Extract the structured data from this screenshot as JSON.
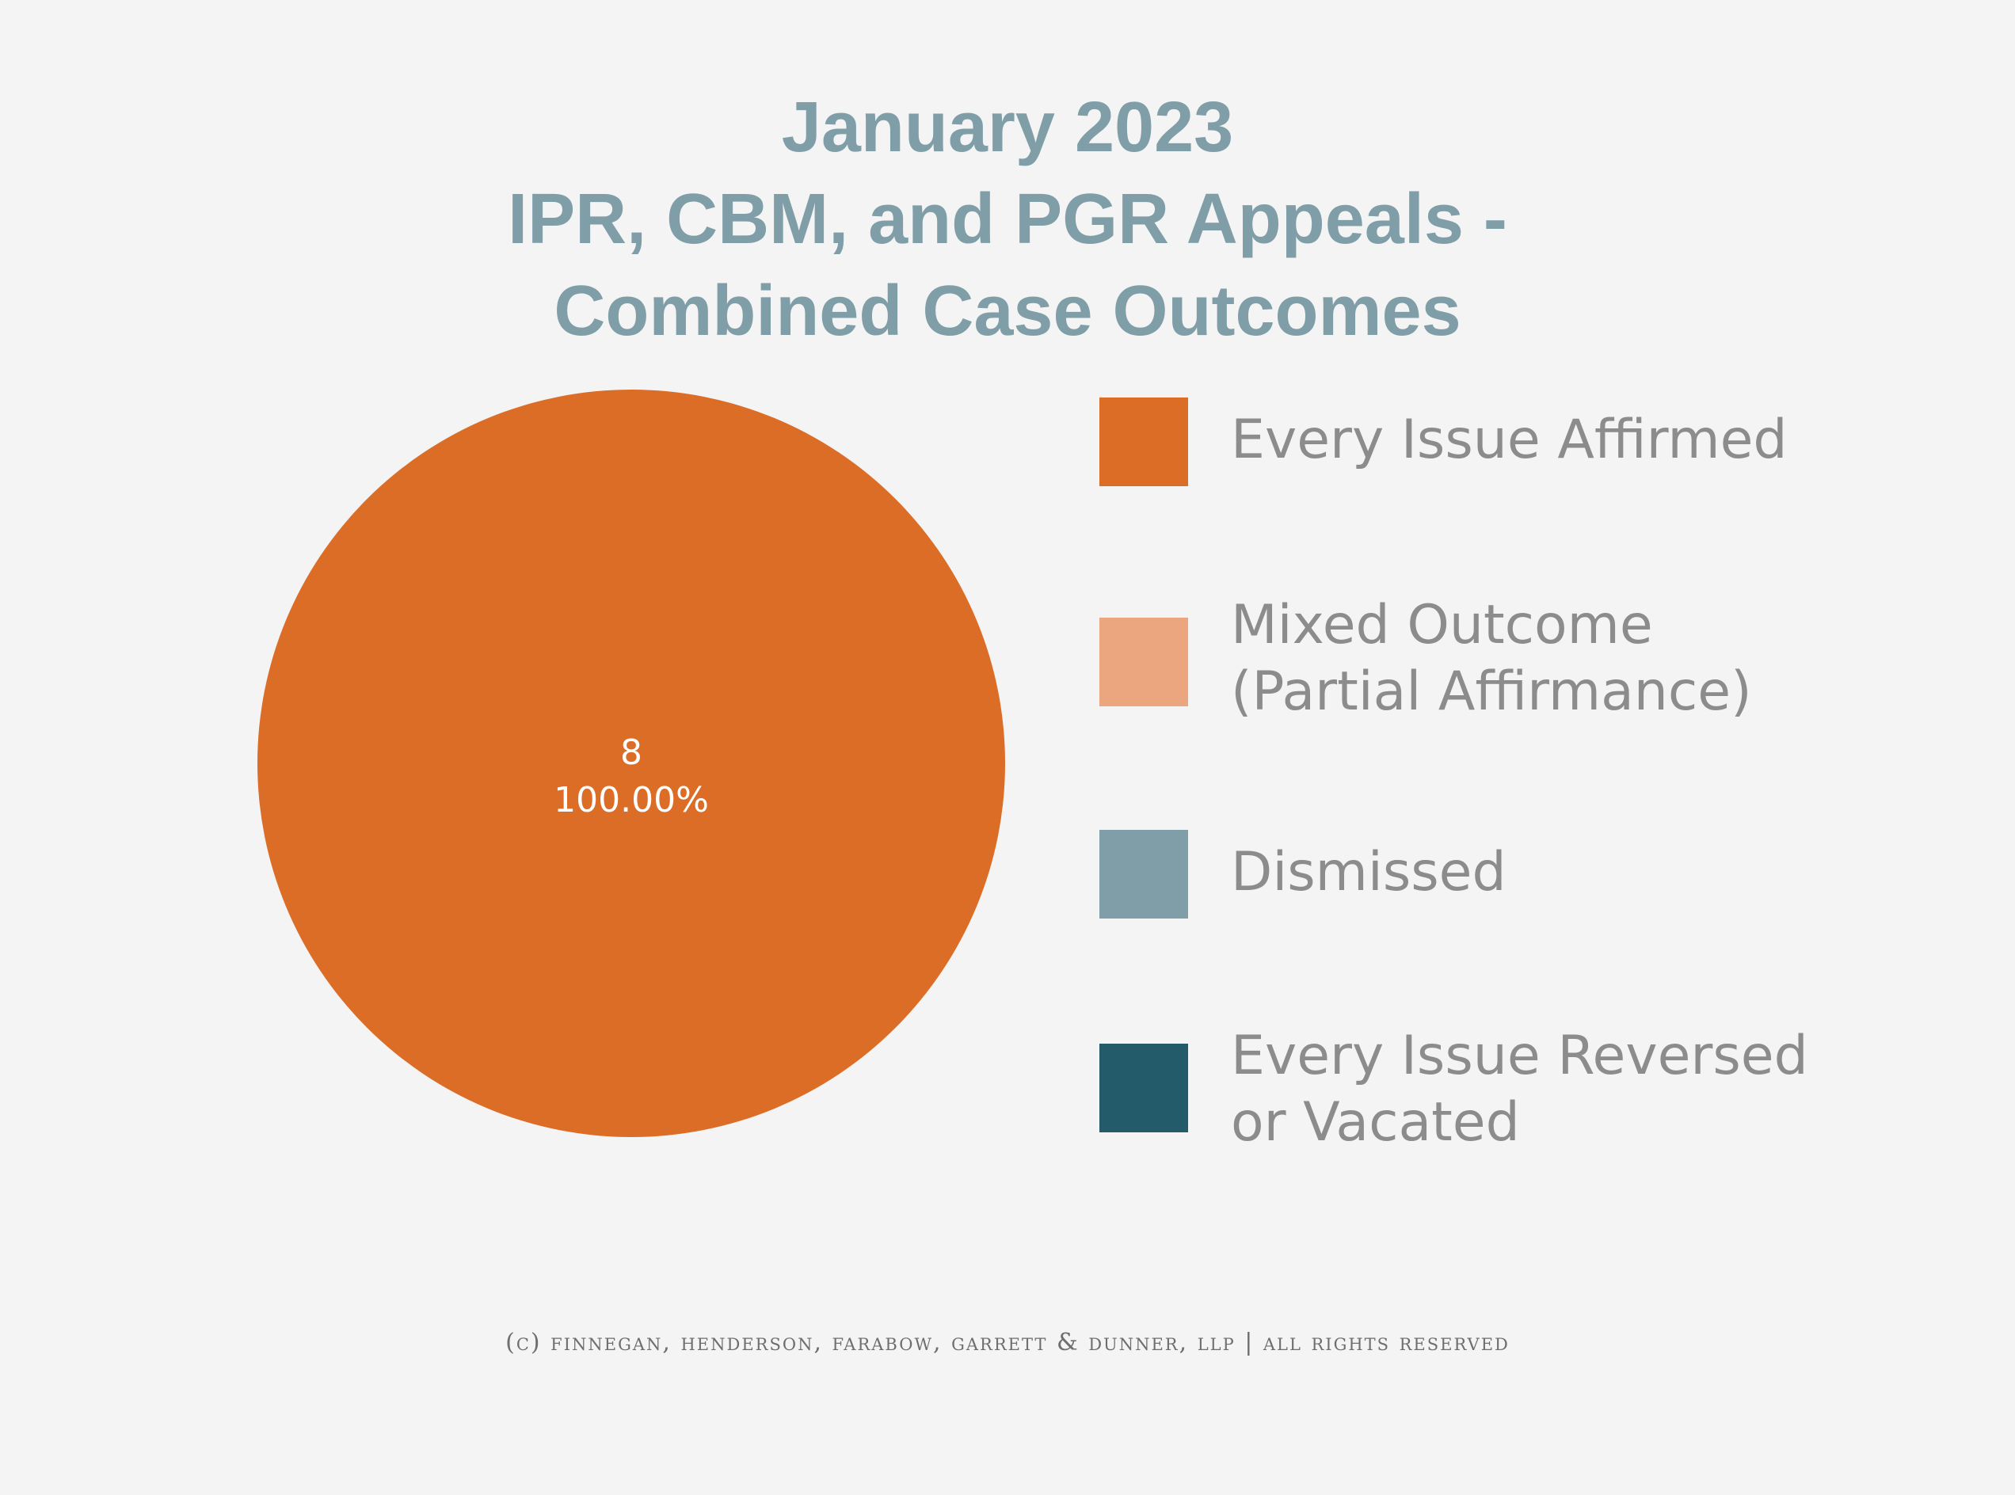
{
  "chart_data": {
    "type": "pie",
    "title": [
      "January 2023",
      "IPR, CBM, and PGR Appeals -",
      "Combined Case Outcomes"
    ],
    "slices": [
      {
        "label": "Every Issue Affirmed",
        "value": 8,
        "percent": "100.00%",
        "color": "#dc6d27"
      },
      {
        "label": "Mixed Outcome\n(Partial Affirmance)",
        "value": 0,
        "percent": "0.00%",
        "color": "#eba67f"
      },
      {
        "label": "Dismissed",
        "value": 0,
        "percent": "0.00%",
        "color": "#7f9ea8"
      },
      {
        "label": "Every Issue Reversed\nor Vacated",
        "value": 0,
        "percent": "0.00%",
        "color": "#245b6b"
      }
    ],
    "data_label_value": "8",
    "data_label_percent": "100.00%",
    "legend_position": "right"
  },
  "footer": "(c) finnegan, henderson, farabow, garrett & dunner, llp | all rights reserved"
}
